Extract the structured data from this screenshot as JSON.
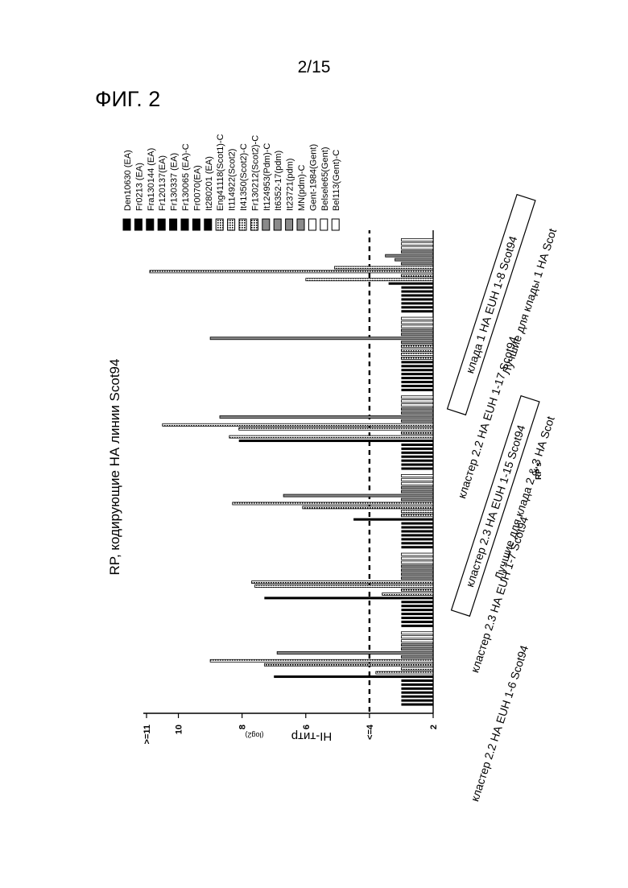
{
  "page_number": "2/15",
  "figure_label": "ФИГ. 2",
  "chart_data": {
    "type": "bar",
    "title": "RP, кодирующие НА линии Scot94",
    "ylabel": "HI-титр",
    "ylabel_sub": "(log2)",
    "xlabel": "RP's",
    "ylim": [
      2,
      11
    ],
    "yticks": [
      {
        "value": 2,
        "label": "2"
      },
      {
        "value": 4,
        "label": "<=4"
      },
      {
        "value": 6,
        "label": "6"
      },
      {
        "value": 8,
        "label": "8"
      },
      {
        "value": 10,
        "label": "10"
      },
      {
        "value": 11,
        "label": ">=11"
      }
    ],
    "threshold": 4,
    "series": [
      {
        "name": "Den10630 (EA)",
        "style": "black"
      },
      {
        "name": "Fr0213 (EA)",
        "style": "black"
      },
      {
        "name": "Fra130144 (EA)",
        "style": "black"
      },
      {
        "name": "Fr120137(EA)",
        "style": "black"
      },
      {
        "name": "Fr130337 (EA)",
        "style": "black"
      },
      {
        "name": "Fr130065 (EA)-C",
        "style": "black"
      },
      {
        "name": "Fr0070(EA)",
        "style": "black"
      },
      {
        "name": "It280201 (EA)",
        "style": "black"
      },
      {
        "name": "Eng41118(Scot1)-C",
        "style": "dotted"
      },
      {
        "name": "It114922(Scot2)",
        "style": "dotted"
      },
      {
        "name": "It41350(Scot2)-C",
        "style": "dotted"
      },
      {
        "name": "Fr130212(Scot2)-C",
        "style": "dotted"
      },
      {
        "name": "It124953(Pdm)-C",
        "style": "gray"
      },
      {
        "name": "It6352-17(pdm)",
        "style": "gray"
      },
      {
        "name": "It23721(pdm)",
        "style": "gray"
      },
      {
        "name": "MN(pdm)-C",
        "style": "gray"
      },
      {
        "name": "Gent-1984(Gent)",
        "style": "white"
      },
      {
        "name": "Belsele65(Gent)",
        "style": "white"
      },
      {
        "name": "Bel113(Gent)-C",
        "style": "white"
      }
    ],
    "groups": [
      {
        "label": "кластер 2.2 НА EUH 1-6 Scot94",
        "boxed": false,
        "values": [
          3,
          3,
          3,
          3,
          3,
          3,
          3,
          7,
          3.8,
          3,
          7.3,
          9,
          3,
          6.9,
          3,
          3,
          3,
          3,
          3
        ]
      },
      {
        "label": "кластер 2.3 НА EUH 1-7 Scot94",
        "boxed": false,
        "values": [
          3,
          3,
          3,
          3,
          3,
          3,
          3,
          7.3,
          3.6,
          3,
          7.6,
          7.7,
          3,
          3,
          3,
          3,
          3,
          3,
          3
        ]
      },
      {
        "label": "кластер 2.3 НА EUH 1-15 Scot94",
        "boxed": true,
        "values": [
          3,
          3,
          3,
          3,
          3,
          3,
          3,
          4.5,
          3,
          3,
          6.1,
          8.3,
          3,
          6.7,
          3,
          3,
          3,
          3,
          3
        ]
      },
      {
        "label": "кластер 2.2 НА EUH 1-17 Scot94",
        "boxed": false,
        "values": [
          3,
          3,
          3,
          3,
          3,
          3,
          3,
          8.1,
          8.4,
          3,
          8.1,
          10.5,
          3,
          8.7,
          3,
          3,
          3,
          3,
          3
        ]
      },
      {
        "label": "клада 1 НА EUH 1-8 Scot94",
        "boxed": true,
        "values": [
          3,
          3,
          3,
          3,
          3,
          3,
          3,
          3,
          3,
          3,
          3,
          3,
          3,
          9,
          3,
          3,
          3,
          3,
          3
        ]
      },
      {
        "label": "",
        "boxed": false,
        "values": [
          3,
          3,
          3,
          3,
          3,
          3,
          3,
          3.4,
          6,
          3,
          10.9,
          5.1,
          3,
          3.2,
          3.5,
          3,
          3,
          3,
          3
        ]
      }
    ],
    "annotations": [
      {
        "text": "Лучшие для клада 2 & 3 НА Scot"
      },
      {
        "text": "Лучшие для клады 1 НА Scot"
      }
    ]
  }
}
